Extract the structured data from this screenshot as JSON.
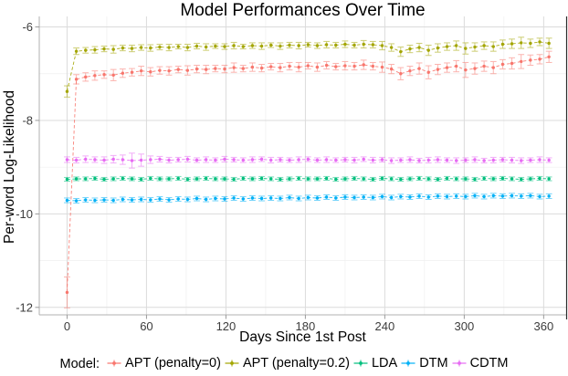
{
  "chart_data": {
    "type": "line",
    "title": "Model Performances Over Time",
    "xlabel": "Days Since 1st Post",
    "ylabel": "Per-word Log-Likelihood",
    "legend": {
      "prefix": "Model:",
      "position": "bottom"
    },
    "axes": {
      "xticks": [
        0,
        60,
        120,
        180,
        240,
        300,
        360
      ],
      "yticks": [
        -6,
        -8,
        -10,
        -12
      ],
      "x_minor": [
        30,
        90,
        150,
        210,
        270,
        330
      ],
      "y_minor": [
        -7,
        -9,
        -11
      ],
      "xlim": [
        -21,
        377
      ],
      "ylim": [
        -12.16,
        -5.775
      ],
      "grid": true
    },
    "x": [
      0,
      7,
      14,
      21,
      28,
      35,
      42,
      49,
      56,
      63,
      70,
      77,
      84,
      91,
      98,
      105,
      112,
      119,
      126,
      133,
      140,
      147,
      154,
      161,
      168,
      175,
      182,
      189,
      196,
      203,
      210,
      217,
      224,
      231,
      238,
      245,
      252,
      259,
      266,
      273,
      280,
      287,
      294,
      301,
      308,
      315,
      322,
      329,
      336,
      343,
      350,
      357,
      364
    ],
    "series": [
      {
        "name": "APT (penalty=0)",
        "color": "#F8766D",
        "y": [
          -11.68,
          -7.12,
          -7.07,
          -7.04,
          -7.02,
          -7.03,
          -6.99,
          -6.97,
          -6.94,
          -6.96,
          -6.93,
          -6.94,
          -6.91,
          -6.93,
          -6.9,
          -6.91,
          -6.89,
          -6.9,
          -6.87,
          -6.89,
          -6.86,
          -6.88,
          -6.85,
          -6.87,
          -6.84,
          -6.86,
          -6.83,
          -6.86,
          -6.82,
          -6.85,
          -6.83,
          -6.84,
          -6.81,
          -6.84,
          -6.86,
          -6.9,
          -7.0,
          -6.94,
          -6.89,
          -6.97,
          -6.91,
          -6.87,
          -6.84,
          -6.92,
          -6.89,
          -6.84,
          -6.87,
          -6.8,
          -6.78,
          -6.74,
          -6.71,
          -6.69,
          -6.64
        ],
        "err": [
          0.33,
          0.1,
          0.09,
          0.1,
          0.08,
          0.12,
          0.09,
          0.08,
          0.1,
          0.09,
          0.08,
          0.09,
          0.07,
          0.1,
          0.08,
          0.09,
          0.07,
          0.08,
          0.1,
          0.07,
          0.09,
          0.08,
          0.07,
          0.09,
          0.08,
          0.1,
          0.07,
          0.09,
          0.08,
          0.07,
          0.09,
          0.08,
          0.1,
          0.08,
          0.11,
          0.1,
          0.13,
          0.1,
          0.12,
          0.14,
          0.11,
          0.1,
          0.12,
          0.16,
          0.12,
          0.11,
          0.13,
          0.1,
          0.12,
          0.15,
          0.11,
          0.1,
          0.12
        ]
      },
      {
        "name": "APT (penalty=0.2)",
        "color": "#A3A500",
        "y": [
          -7.38,
          -6.52,
          -6.5,
          -6.49,
          -6.47,
          -6.48,
          -6.45,
          -6.46,
          -6.44,
          -6.45,
          -6.43,
          -6.44,
          -6.42,
          -6.44,
          -6.41,
          -6.43,
          -6.41,
          -6.42,
          -6.4,
          -6.42,
          -6.4,
          -6.41,
          -6.39,
          -6.41,
          -6.39,
          -6.4,
          -6.38,
          -6.4,
          -6.38,
          -6.39,
          -6.37,
          -6.39,
          -6.37,
          -6.38,
          -6.4,
          -6.44,
          -6.53,
          -6.47,
          -6.44,
          -6.5,
          -6.45,
          -6.42,
          -6.4,
          -6.46,
          -6.43,
          -6.4,
          -6.42,
          -6.37,
          -6.36,
          -6.34,
          -6.35,
          -6.32,
          -6.35
        ],
        "err": [
          0.12,
          0.07,
          0.06,
          0.07,
          0.06,
          0.08,
          0.06,
          0.07,
          0.06,
          0.07,
          0.06,
          0.07,
          0.05,
          0.07,
          0.06,
          0.07,
          0.05,
          0.06,
          0.07,
          0.05,
          0.06,
          0.07,
          0.05,
          0.07,
          0.06,
          0.07,
          0.05,
          0.06,
          0.07,
          0.06,
          0.07,
          0.06,
          0.08,
          0.07,
          0.09,
          0.08,
          0.1,
          0.08,
          0.09,
          0.11,
          0.09,
          0.08,
          0.1,
          0.12,
          0.09,
          0.08,
          0.1,
          0.09,
          0.1,
          0.12,
          0.09,
          0.08,
          0.11
        ]
      },
      {
        "name": "LDA",
        "color": "#00BF7D",
        "y": [
          -9.26,
          -9.25,
          -9.25,
          -9.24,
          -9.26,
          -9.25,
          -9.24,
          -9.25,
          -9.26,
          -9.24,
          -9.25,
          -9.25,
          -9.24,
          -9.26,
          -9.25,
          -9.24,
          -9.25,
          -9.25,
          -9.26,
          -9.24,
          -9.25,
          -9.24,
          -9.25,
          -9.26,
          -9.25,
          -9.24,
          -9.25,
          -9.25,
          -9.24,
          -9.26,
          -9.25,
          -9.24,
          -9.25,
          -9.26,
          -9.24,
          -9.25,
          -9.26,
          -9.25,
          -9.24,
          -9.25,
          -9.26,
          -9.24,
          -9.25,
          -9.25,
          -9.26,
          -9.24,
          -9.25,
          -9.24,
          -9.25,
          -9.26,
          -9.25,
          -9.24,
          -9.25
        ],
        "err": 0.04
      },
      {
        "name": "DTM",
        "color": "#00B0F6",
        "y": [
          -9.71,
          -9.72,
          -9.7,
          -9.71,
          -9.7,
          -9.71,
          -9.69,
          -9.7,
          -9.69,
          -9.7,
          -9.68,
          -9.7,
          -9.68,
          -9.69,
          -9.67,
          -9.69,
          -9.67,
          -9.68,
          -9.66,
          -9.68,
          -9.66,
          -9.67,
          -9.66,
          -9.67,
          -9.65,
          -9.67,
          -9.65,
          -9.66,
          -9.64,
          -9.66,
          -9.64,
          -9.65,
          -9.64,
          -9.65,
          -9.63,
          -9.65,
          -9.63,
          -9.64,
          -9.62,
          -9.64,
          -9.62,
          -9.63,
          -9.62,
          -9.63,
          -9.61,
          -9.63,
          -9.61,
          -9.62,
          -9.61,
          -9.62,
          -9.61,
          -9.63,
          -9.62
        ],
        "err": 0.05
      },
      {
        "name": "CDTM",
        "color": "#E76BF3",
        "y": [
          -8.84,
          -8.85,
          -8.83,
          -8.84,
          -8.85,
          -8.83,
          -8.84,
          -8.86,
          -8.85,
          -8.84,
          -8.83,
          -8.85,
          -8.84,
          -8.83,
          -8.85,
          -8.84,
          -8.85,
          -8.83,
          -8.84,
          -8.85,
          -8.84,
          -8.83,
          -8.85,
          -8.84,
          -8.85,
          -8.84,
          -8.83,
          -8.85,
          -8.84,
          -8.85,
          -8.84,
          -8.85,
          -8.83,
          -8.85,
          -8.84,
          -8.86,
          -8.85,
          -8.84,
          -8.86,
          -8.85,
          -8.84,
          -8.85,
          -8.86,
          -8.85,
          -8.84,
          -8.86,
          -8.85,
          -8.84,
          -8.85,
          -8.86,
          -8.85,
          -8.84,
          -8.85
        ],
        "err": [
          0.06,
          0.06,
          0.07,
          0.06,
          0.07,
          0.08,
          0.1,
          0.16,
          0.13,
          0.08,
          0.06,
          0.06,
          0.05,
          0.06,
          0.05,
          0.06,
          0.05,
          0.06,
          0.05,
          0.05,
          0.06,
          0.05,
          0.06,
          0.05,
          0.05,
          0.06,
          0.05,
          0.05,
          0.06,
          0.05,
          0.05,
          0.06,
          0.05,
          0.06,
          0.05,
          0.06,
          0.05,
          0.06,
          0.05,
          0.06,
          0.06,
          0.05,
          0.06,
          0.05,
          0.06,
          0.05,
          0.06,
          0.05,
          0.06,
          0.06,
          0.05,
          0.06,
          0.05
        ]
      }
    ],
    "style_colors": {
      "grid_major": "#DBDBDB",
      "grid_minor": "#EFEFEF",
      "axis_line": "#B0B0B0",
      "tick_mark": "#9A9A9A",
      "tick_label": "#3c3c3c",
      "right_border": "#2b2b2b"
    }
  }
}
